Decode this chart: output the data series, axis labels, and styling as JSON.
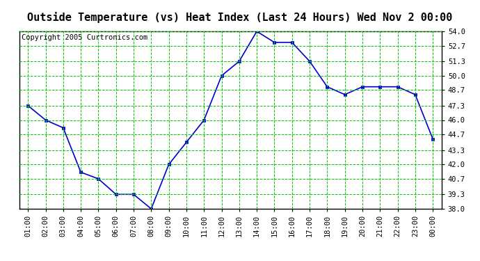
{
  "title": "Outside Temperature (vs) Heat Index (Last 24 Hours) Wed Nov 2 00:00",
  "copyright": "Copyright 2005 Curtronics.com",
  "x_labels": [
    "01:00",
    "02:00",
    "03:00",
    "04:00",
    "05:00",
    "06:00",
    "07:00",
    "08:00",
    "09:00",
    "10:00",
    "11:00",
    "12:00",
    "13:00",
    "14:00",
    "15:00",
    "16:00",
    "17:00",
    "18:00",
    "19:00",
    "20:00",
    "21:00",
    "22:00",
    "23:00",
    "00:00"
  ],
  "y_values": [
    47.3,
    46.0,
    45.3,
    41.3,
    40.7,
    39.3,
    39.3,
    38.0,
    42.0,
    44.0,
    46.0,
    50.0,
    51.3,
    54.0,
    53.0,
    53.0,
    51.3,
    49.0,
    48.3,
    49.0,
    49.0,
    49.0,
    48.3,
    44.3
  ],
  "ylim": [
    38.0,
    54.0
  ],
  "y_ticks": [
    38.0,
    39.3,
    40.7,
    42.0,
    43.3,
    44.7,
    46.0,
    47.3,
    48.7,
    50.0,
    51.3,
    52.7,
    54.0
  ],
  "line_color": "#0000cc",
  "marker_color": "#0000cc",
  "bg_color": "#ffffff",
  "plot_bg_color": "#ffffff",
  "grid_color": "#00cc00",
  "title_color": "#000000",
  "title_fontsize": 11,
  "copyright_fontsize": 7.5,
  "tick_label_color": "#000000",
  "tick_fontsize": 7.5
}
